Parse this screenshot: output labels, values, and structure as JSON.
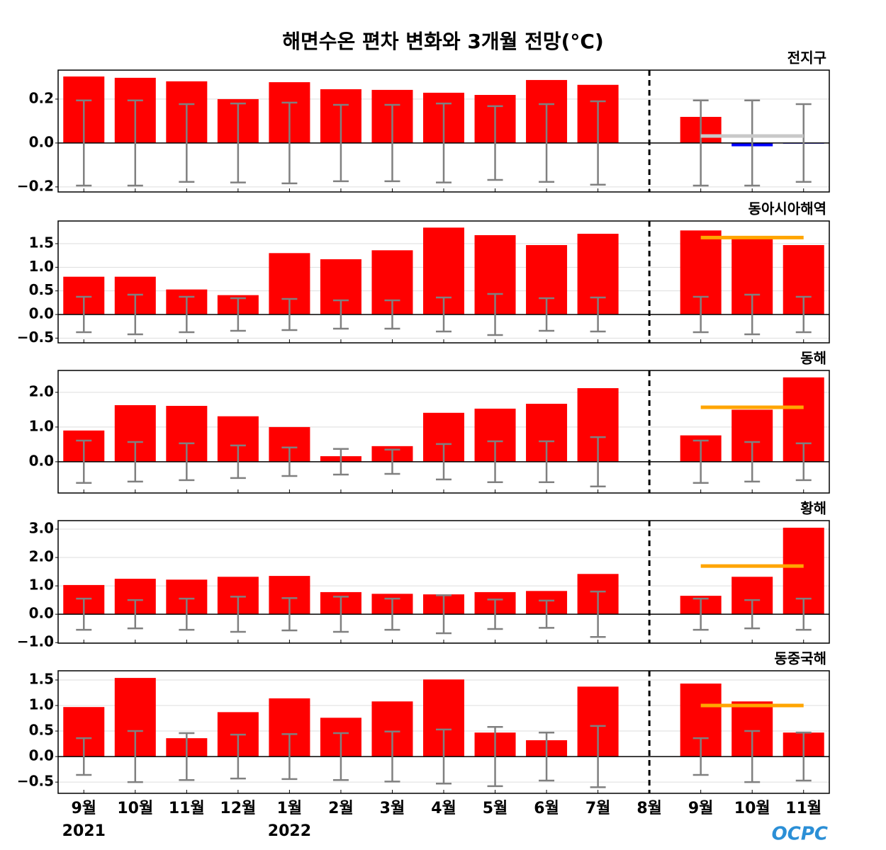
{
  "title": "해면수온 편차 변화와 3개월 전망(°C)",
  "categories": [
    "9월",
    "10월",
    "11월",
    "12월",
    "1월",
    "2월",
    "3월",
    "4월",
    "5월",
    "6월",
    "7월",
    "8월",
    "9월",
    "10월",
    "11월"
  ],
  "year_labels": [
    "2021",
    null,
    null,
    null,
    "2022",
    null,
    null,
    null,
    null,
    null,
    null,
    null,
    null,
    null,
    null
  ],
  "logo": "OCPC",
  "chart_data": [
    {
      "type": "bar",
      "title": "전지구",
      "color": "#ff0000",
      "negative_color": "#0000ff",
      "error_color": "#808080",
      "grid": true,
      "values": [
        0.303,
        0.297,
        0.281,
        0.2,
        0.277,
        0.245,
        0.242,
        0.229,
        0.219,
        0.287,
        0.265,
        0,
        0.119,
        -0.015,
        -0.003
      ],
      "errors": [
        0.194,
        0.194,
        0.177,
        0.18,
        0.184,
        0.174,
        0.174,
        0.18,
        0.168,
        0.177,
        0.19,
        null,
        0.194,
        0.194,
        0.177
      ],
      "forecast": {
        "value": 0.032,
        "color": "#c8c8c8"
      },
      "ylim": [
        -0.223,
        0.332
      ],
      "yticks": [
        {
          "value": -0.2,
          "label": "−0.2"
        },
        {
          "value": 0,
          "label": "0.0"
        },
        0.2
      ]
    },
    {
      "type": "bar",
      "title": "동아시아해역",
      "color": "#ff0000",
      "negative_color": "#0000ff",
      "error_color": "#808080",
      "grid": true,
      "values": [
        0.8,
        0.8,
        0.53,
        0.41,
        1.3,
        1.17,
        1.36,
        1.84,
        1.68,
        1.47,
        1.71,
        0,
        1.78,
        1.63,
        1.47
      ],
      "errors": [
        0.375,
        0.42,
        0.375,
        0.345,
        0.33,
        0.3,
        0.3,
        0.36,
        0.435,
        0.345,
        0.36,
        null,
        0.375,
        0.42,
        0.375
      ],
      "forecast": {
        "value": 1.63,
        "color": "#ffa500"
      },
      "ylim": [
        -0.6,
        1.98
      ],
      "yticks": [
        {
          "value": -0.5,
          "label": "−0.5"
        },
        {
          "value": 0,
          "label": "0.0"
        },
        0.5,
        {
          "value": 1,
          "label": "1.0"
        },
        1.5
      ]
    },
    {
      "type": "bar",
      "title": "동해",
      "color": "#ff0000",
      "negative_color": "#0000ff",
      "error_color": "#808080",
      "grid": true,
      "values": [
        0.9,
        1.63,
        1.61,
        1.31,
        1.0,
        0.16,
        0.45,
        1.41,
        1.53,
        1.67,
        2.12,
        0,
        0.76,
        1.5,
        2.43
      ],
      "errors": [
        0.61,
        0.57,
        0.53,
        0.47,
        0.41,
        0.37,
        0.35,
        0.51,
        0.59,
        0.59,
        0.71,
        null,
        0.61,
        0.57,
        0.53
      ],
      "forecast": {
        "value": 1.57,
        "color": "#ffa500"
      },
      "ylim": [
        -0.9,
        2.63
      ],
      "yticks": [
        {
          "value": 0,
          "label": "0.0"
        },
        {
          "value": 1,
          "label": "1.0"
        },
        {
          "value": 2,
          "label": "2.0"
        }
      ]
    },
    {
      "type": "bar",
      "title": "황해",
      "color": "#ff0000",
      "negative_color": "#0000ff",
      "error_color": "#808080",
      "grid": true,
      "values": [
        1.03,
        1.25,
        1.22,
        1.32,
        1.35,
        0.78,
        0.72,
        0.7,
        0.78,
        0.82,
        1.42,
        0,
        0.65,
        1.32,
        3.05
      ],
      "errors": [
        0.55,
        0.5,
        0.55,
        0.62,
        0.57,
        0.62,
        0.55,
        0.67,
        0.52,
        0.48,
        0.8,
        null,
        0.55,
        0.5,
        0.55
      ],
      "forecast": {
        "value": 1.7,
        "color": "#ffa500"
      },
      "ylim": [
        -1.02,
        3.3
      ],
      "yticks": [
        {
          "value": -1,
          "label": "−1.0"
        },
        {
          "value": 0,
          "label": "0.0"
        },
        {
          "value": 1,
          "label": "1.0"
        },
        {
          "value": 2,
          "label": "2.0"
        },
        {
          "value": 3,
          "label": "3.0"
        }
      ]
    },
    {
      "type": "bar",
      "title": "동중국해",
      "color": "#ff0000",
      "negative_color": "#0000ff",
      "error_color": "#808080",
      "grid": true,
      "values": [
        0.97,
        1.54,
        0.36,
        0.87,
        1.14,
        0.76,
        1.08,
        1.51,
        0.47,
        0.32,
        1.37,
        0,
        1.43,
        1.08,
        0.47
      ],
      "errors": [
        0.36,
        0.5,
        0.46,
        0.43,
        0.44,
        0.46,
        0.49,
        0.53,
        0.58,
        0.47,
        0.6,
        null,
        0.36,
        0.5,
        0.47
      ],
      "forecast": {
        "value": 1.0,
        "color": "#ffa500"
      },
      "ylim": [
        -0.72,
        1.68
      ],
      "yticks": [
        {
          "value": -0.5,
          "label": "−0.5"
        },
        {
          "value": 0,
          "label": "0.0"
        },
        0.5,
        {
          "value": 1,
          "label": "1.0"
        },
        1.5
      ]
    }
  ]
}
